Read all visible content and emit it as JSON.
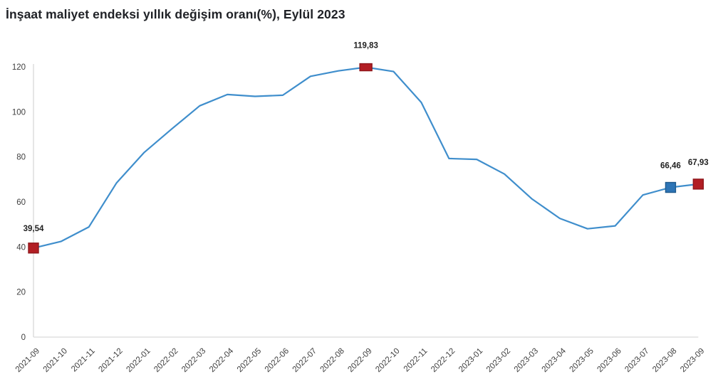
{
  "title": "İnşaat maliyet endeksi yıllık değişim oranı(%), Eylül 2023",
  "colors": {
    "line": "#3f8ecc",
    "axis": "#d9d9d9",
    "tick_text": "#3f3f3f",
    "title_text": "#1f2126",
    "label_text": "#1f1f1f",
    "marker_red_fill": "#b21e24",
    "marker_red_stroke": "#8f181d",
    "marker_blue_fill": "#2e75b6",
    "marker_blue_stroke": "#1f5a8d"
  },
  "chart_data": {
    "type": "line",
    "title": "İnşaat maliyet endeksi yıllık değişim oranı(%), Eylül 2023",
    "xlabel": "",
    "ylabel": "",
    "ylim": [
      0,
      120
    ],
    "yticks": [
      0,
      20,
      40,
      60,
      80,
      100,
      120
    ],
    "grid": false,
    "legend": "none",
    "categories": [
      "2021-09",
      "2021-10",
      "2021-11",
      "2021-12",
      "2022-01",
      "2022-02",
      "2022-03",
      "2022-04",
      "2022-05",
      "2022-06",
      "2022-07",
      "2022-08",
      "2022-09",
      "2022-10",
      "2022-11",
      "2022-12",
      "2023-01",
      "2023-02",
      "2023-03",
      "2023-04",
      "2023-05",
      "2023-06",
      "2023-07",
      "2023-08",
      "2023-09"
    ],
    "values": [
      39.54,
      42.5,
      48.9,
      68.5,
      82.0,
      92.5,
      102.7,
      107.7,
      106.9,
      107.4,
      115.8,
      118.2,
      119.83,
      117.9,
      104.2,
      79.3,
      78.9,
      72.4,
      61.3,
      52.7,
      48.1,
      49.4,
      63.1,
      66.46,
      67.93
    ],
    "annotations": [
      {
        "x": "2021-09",
        "label": "39,54",
        "marker": "red",
        "w": 14,
        "h": 14,
        "dy": -24
      },
      {
        "x": "2022-09",
        "label": "119,83",
        "marker": "red",
        "w": 17,
        "h": 10,
        "dy": -27
      },
      {
        "x": "2023-08",
        "label": "66,46",
        "marker": "blue",
        "w": 14,
        "h": 14,
        "dy": -27
      },
      {
        "x": "2023-09",
        "label": "67,93",
        "marker": "red",
        "w": 14,
        "h": 14,
        "dy": -27
      }
    ]
  }
}
